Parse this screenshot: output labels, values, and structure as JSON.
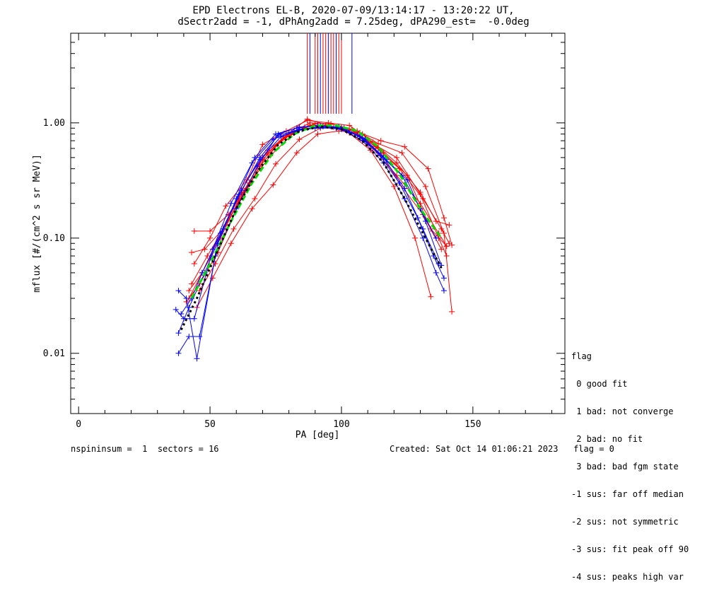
{
  "title_line1": "EPD Electrons EL-B, 2020-07-09/13:14:17 - 13:20:22 UT,",
  "title_line2": "dSectr2add = -1, dPhAng2add = 7.25deg, dPA290_est=  -0.0deg",
  "legend": {
    "title": "flag",
    "items": [
      " 0 good fit",
      " 1 bad: not converge",
      " 2 bad: no fit",
      " 3 bad: bad fgm state",
      "-1 sus: far off median",
      "-2 sus: not symmetric",
      "-3 sus: fit peak off 90",
      "-4 sus: peaks high var"
    ]
  },
  "footer": {
    "left": "nspininsum =  1  sectors = 16",
    "right": "Created: Sat Oct 14 01:06:21 2023   flag = 0"
  },
  "colors": {
    "red": "#ff0000",
    "blue": "#0000ff",
    "green": "#00dd00",
    "black": "#000000"
  },
  "chart_data": {
    "type": "line",
    "xlabel": "PA [deg]",
    "ylabel": "mflux [#/(cm^2 s sr MeV)]",
    "xlim": [
      -3,
      185
    ],
    "ylim": [
      0.003,
      6.0
    ],
    "yscale": "log",
    "xticks": [
      0,
      50,
      100,
      150
    ],
    "xtick_labels": [
      "0",
      "50",
      "100",
      "150"
    ],
    "yticks": [
      0.01,
      0.1,
      1.0
    ],
    "ytick_labels": [
      "0.01",
      "0.10",
      "1.00"
    ],
    "peak_marker_x": [
      87,
      88,
      90,
      91,
      92,
      93,
      94,
      95,
      96,
      97,
      98,
      99,
      100,
      104
    ],
    "series": [
      {
        "color": "red",
        "x": [
          42,
          47,
          55,
          63,
          70,
          78,
          87,
          95,
          103,
          112,
          121,
          130,
          137,
          140
        ],
        "y": [
          0.03,
          0.05,
          0.12,
          0.25,
          0.5,
          0.75,
          1.08,
          0.95,
          0.82,
          0.6,
          0.35,
          0.2,
          0.11,
          0.085
        ]
      },
      {
        "color": "red",
        "x": [
          43,
          49,
          56,
          64,
          72,
          80,
          88,
          96,
          104,
          113,
          122,
          131,
          138,
          141
        ],
        "y": [
          0.04,
          0.07,
          0.13,
          0.27,
          0.55,
          0.8,
          1.0,
          0.98,
          0.88,
          0.62,
          0.4,
          0.22,
          0.12,
          0.09
        ]
      },
      {
        "color": "red",
        "x": [
          44,
          50,
          57,
          65,
          73,
          82,
          90,
          98,
          106,
          114,
          123,
          132,
          139,
          142
        ],
        "y": [
          0.115,
          0.115,
          0.16,
          0.3,
          0.52,
          0.82,
          0.98,
          0.9,
          0.85,
          0.66,
          0.55,
          0.28,
          0.11,
          0.023
        ]
      },
      {
        "color": "red",
        "x": [
          41,
          46,
          53,
          61,
          69,
          77,
          86,
          94,
          102,
          111,
          120,
          128,
          134
        ],
        "y": [
          0.028,
          0.04,
          0.075,
          0.2,
          0.42,
          0.7,
          0.92,
          0.95,
          0.85,
          0.58,
          0.28,
          0.1,
          0.031
        ]
      },
      {
        "color": "red",
        "x": [
          43,
          48,
          55,
          62,
          70,
          79,
          87,
          95,
          103,
          112,
          121,
          130,
          136,
          141
        ],
        "y": [
          0.075,
          0.08,
          0.12,
          0.25,
          0.65,
          0.85,
          1.05,
          1.0,
          0.95,
          0.68,
          0.45,
          0.25,
          0.14,
          0.13
        ]
      },
      {
        "color": "red",
        "x": [
          45,
          51,
          58,
          66,
          74,
          83,
          91,
          99,
          107,
          115,
          124,
          133,
          139,
          142
        ],
        "y": [
          0.025,
          0.045,
          0.09,
          0.18,
          0.29,
          0.55,
          0.8,
          0.85,
          0.82,
          0.7,
          0.62,
          0.4,
          0.15,
          0.087
        ]
      },
      {
        "color": "red",
        "x": [
          44,
          50,
          56,
          64,
          72,
          81,
          89,
          97,
          105,
          114,
          122,
          131,
          138
        ],
        "y": [
          0.06,
          0.1,
          0.19,
          0.32,
          0.58,
          0.83,
          0.95,
          0.92,
          0.82,
          0.6,
          0.3,
          0.16,
          0.08
        ]
      },
      {
        "color": "red",
        "x": [
          42,
          47,
          54,
          62,
          70,
          79,
          88,
          96,
          104,
          113,
          121,
          130,
          137,
          140
        ],
        "y": [
          0.035,
          0.05,
          0.1,
          0.24,
          0.48,
          0.76,
          0.96,
          0.93,
          0.86,
          0.64,
          0.5,
          0.24,
          0.1,
          0.07
        ]
      },
      {
        "color": "red",
        "x": [
          46,
          52,
          59,
          67,
          75,
          84,
          92,
          100,
          108,
          116,
          125,
          134,
          140
        ],
        "y": [
          0.035,
          0.06,
          0.12,
          0.22,
          0.44,
          0.72,
          0.9,
          0.92,
          0.8,
          0.55,
          0.35,
          0.12,
          0.085
        ]
      },
      {
        "color": "blue",
        "x": [
          38,
          42,
          48,
          55,
          62,
          69,
          76,
          84,
          92,
          100,
          108,
          116,
          124,
          131,
          136,
          139
        ],
        "y": [
          0.015,
          0.025,
          0.05,
          0.12,
          0.26,
          0.5,
          0.78,
          0.88,
          0.92,
          0.88,
          0.7,
          0.45,
          0.22,
          0.1,
          0.05,
          0.035
        ]
      },
      {
        "color": "blue",
        "x": [
          38,
          41,
          45,
          52,
          60,
          68,
          76,
          84,
          92,
          100,
          108,
          116,
          124,
          131,
          137
        ],
        "y": [
          0.035,
          0.03,
          0.009,
          0.07,
          0.18,
          0.42,
          0.8,
          0.92,
          0.95,
          0.9,
          0.74,
          0.5,
          0.27,
          0.12,
          0.06
        ]
      },
      {
        "color": "blue",
        "x": [
          37,
          40,
          44,
          51,
          58,
          66,
          74,
          82,
          90,
          98,
          106,
          114,
          122,
          129,
          135,
          139
        ],
        "y": [
          0.024,
          0.02,
          0.02,
          0.08,
          0.2,
          0.45,
          0.72,
          0.85,
          0.9,
          0.9,
          0.78,
          0.55,
          0.3,
          0.15,
          0.07,
          0.045
        ]
      },
      {
        "color": "blue",
        "x": [
          38,
          42,
          46,
          53,
          60,
          67,
          75,
          83,
          91,
          99,
          107,
          115,
          123,
          130,
          136
        ],
        "y": [
          0.01,
          0.014,
          0.014,
          0.09,
          0.22,
          0.5,
          0.8,
          0.9,
          0.95,
          0.92,
          0.76,
          0.52,
          0.35,
          0.18,
          0.1
        ]
      },
      {
        "color": "blue",
        "x": [
          39,
          43,
          47,
          54,
          61,
          69,
          77,
          85,
          93,
          101,
          109,
          117,
          125,
          132,
          138
        ],
        "y": [
          0.022,
          0.03,
          0.05,
          0.11,
          0.24,
          0.48,
          0.76,
          0.88,
          0.93,
          0.9,
          0.72,
          0.48,
          0.32,
          0.14,
          0.058
        ]
      },
      {
        "color": "green",
        "x": [
          43,
          50,
          58,
          66,
          74,
          82,
          90,
          98,
          106,
          114,
          122,
          130,
          138
        ],
        "y": [
          0.03,
          0.06,
          0.14,
          0.3,
          0.55,
          0.8,
          0.95,
          0.95,
          0.85,
          0.62,
          0.36,
          0.18,
          0.1
        ]
      },
      {
        "color": "black",
        "dashed": true,
        "x": [
          39,
          45,
          52,
          60,
          68,
          76,
          84,
          92,
          100,
          108,
          116,
          124,
          132,
          138
        ],
        "y": [
          0.016,
          0.03,
          0.07,
          0.18,
          0.38,
          0.65,
          0.85,
          0.93,
          0.88,
          0.7,
          0.45,
          0.22,
          0.1,
          0.055
        ]
      }
    ]
  }
}
